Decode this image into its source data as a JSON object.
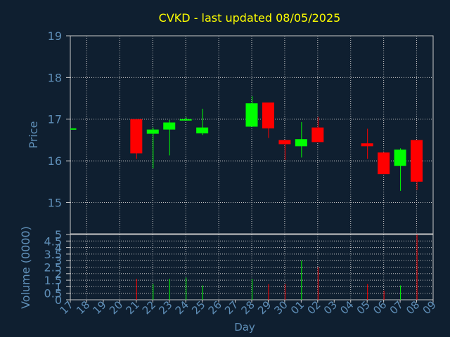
{
  "title": "CVKD - last updated 08/05/2025",
  "colors": {
    "background": "#0f1f30",
    "title": "#ffff00",
    "axis_text": "#5f8fb8",
    "grid": "#c8c8c8",
    "up": "#00ff00",
    "down": "#ff0000"
  },
  "chart_data": [
    {
      "type": "candlestick",
      "ylabel": "Price",
      "ylim": [
        14.25,
        19
      ],
      "yticks": [
        15,
        16,
        17,
        18,
        19
      ],
      "grid": true,
      "days": [
        "17",
        "18",
        "19",
        "20",
        "21",
        "22",
        "23",
        "24",
        "25",
        "26",
        "27",
        "28",
        "29",
        "30",
        "01",
        "02",
        "03",
        "04",
        "05",
        "06",
        "07",
        "08",
        "09"
      ],
      "candles": [
        {
          "day": "17",
          "open": 16.78,
          "close": 16.78,
          "high": 16.78,
          "low": 16.78
        },
        {
          "day": "21",
          "open": 17.0,
          "close": 16.18,
          "high": 17.0,
          "low": 16.05
        },
        {
          "day": "22",
          "open": 16.65,
          "close": 16.75,
          "high": 16.8,
          "low": 15.82
        },
        {
          "day": "23",
          "open": 16.75,
          "close": 16.92,
          "high": 16.98,
          "low": 16.13
        },
        {
          "day": "24",
          "open": 16.99,
          "close": 17.0,
          "high": 17.05,
          "low": 16.98
        },
        {
          "day": "25",
          "open": 16.66,
          "close": 16.8,
          "high": 17.25,
          "low": 16.62
        },
        {
          "day": "28",
          "open": 16.82,
          "close": 17.38,
          "high": 17.55,
          "low": 16.82
        },
        {
          "day": "29",
          "open": 17.4,
          "close": 16.78,
          "high": 17.4,
          "low": 16.55
        },
        {
          "day": "30",
          "open": 16.5,
          "close": 16.4,
          "high": 16.5,
          "low": 16.02
        },
        {
          "day": "01",
          "open": 16.35,
          "close": 16.52,
          "high": 16.93,
          "low": 16.08
        },
        {
          "day": "02",
          "open": 16.8,
          "close": 16.45,
          "high": 17.05,
          "low": 16.45
        },
        {
          "day": "05",
          "open": 16.42,
          "close": 16.35,
          "high": 16.77,
          "low": 16.05
        },
        {
          "day": "06",
          "open": 16.2,
          "close": 15.68,
          "high": 16.2,
          "low": 15.68
        },
        {
          "day": "07",
          "open": 15.88,
          "close": 16.27,
          "high": 16.3,
          "low": 15.28
        },
        {
          "day": "08",
          "open": 16.5,
          "close": 15.5,
          "high": 16.5,
          "low": 15.3
        }
      ]
    },
    {
      "type": "bar",
      "ylabel": "Volume (0000)",
      "xlabel": "Day",
      "ylim": [
        0,
        5
      ],
      "yticks": [
        "0",
        "0.5",
        "1",
        "1.5",
        "2",
        "2.5",
        "3",
        "3.5",
        "4",
        "4.5",
        "5"
      ],
      "grid": true,
      "volumes": [
        {
          "day": "21",
          "value": 1.6,
          "dir": "down"
        },
        {
          "day": "22",
          "value": 1.2,
          "dir": "up"
        },
        {
          "day": "23",
          "value": 1.6,
          "dir": "up"
        },
        {
          "day": "24",
          "value": 1.7,
          "dir": "up"
        },
        {
          "day": "25",
          "value": 1.1,
          "dir": "up"
        },
        {
          "day": "28",
          "value": 1.6,
          "dir": "up"
        },
        {
          "day": "29",
          "value": 1.2,
          "dir": "down"
        },
        {
          "day": "30",
          "value": 1.2,
          "dir": "down"
        },
        {
          "day": "01",
          "value": 3.0,
          "dir": "up"
        },
        {
          "day": "02",
          "value": 2.5,
          "dir": "down"
        },
        {
          "day": "05",
          "value": 1.2,
          "dir": "down"
        },
        {
          "day": "06",
          "value": 0.7,
          "dir": "down"
        },
        {
          "day": "07",
          "value": 1.1,
          "dir": "up"
        },
        {
          "day": "08",
          "value": 5.0,
          "dir": "down"
        }
      ]
    }
  ]
}
